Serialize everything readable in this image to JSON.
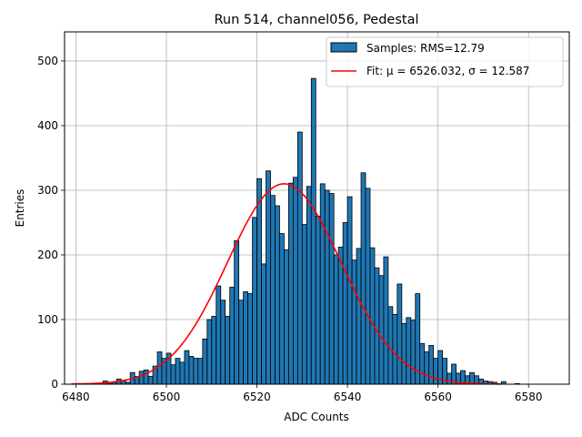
{
  "chart_data": {
    "type": "bar",
    "title": "Run 514, channel056, Pedestal",
    "xlabel": "ADC Counts",
    "ylabel": "Entries",
    "xlim": [
      6477.5,
      6589
    ],
    "ylim": [
      0,
      545
    ],
    "xticks": [
      6480,
      6500,
      6520,
      6540,
      6560,
      6580
    ],
    "yticks": [
      0,
      100,
      200,
      300,
      400,
      500
    ],
    "grid": true,
    "legend_position": "top-right",
    "bin_width": 1,
    "bins_start": 6479,
    "values": [
      0,
      1,
      0,
      0,
      0,
      0,
      0,
      5,
      1,
      3,
      8,
      5,
      3,
      18,
      12,
      20,
      22,
      12,
      28,
      50,
      40,
      48,
      30,
      40,
      34,
      52,
      43,
      40,
      40,
      70,
      100,
      105,
      152,
      130,
      105,
      150,
      222,
      130,
      143,
      140,
      258,
      318,
      186,
      330,
      292,
      276,
      233,
      208,
      311,
      320,
      390,
      247,
      306,
      473,
      260,
      310,
      300,
      295,
      200,
      212,
      250,
      290,
      192,
      210,
      327,
      303,
      211,
      180,
      168,
      197,
      120,
      108,
      155,
      94,
      103,
      99,
      140,
      63,
      50,
      60,
      40,
      52,
      40,
      17,
      31,
      17,
      21,
      13,
      18,
      13,
      8,
      5,
      4,
      3,
      1,
      4,
      0,
      0,
      1
    ],
    "series": [
      {
        "name": "Samples: RMS=12.79",
        "kind": "histogram",
        "color": "#1f77b4",
        "edge_color": "#000000"
      },
      {
        "name": "Fit: μ = 6526.032, σ = 12.587",
        "kind": "line",
        "color": "#ff0000",
        "mu": 6526.032,
        "sigma": 12.587,
        "amplitude": 310,
        "x_range": [
          6479,
          6574
        ]
      }
    ]
  }
}
